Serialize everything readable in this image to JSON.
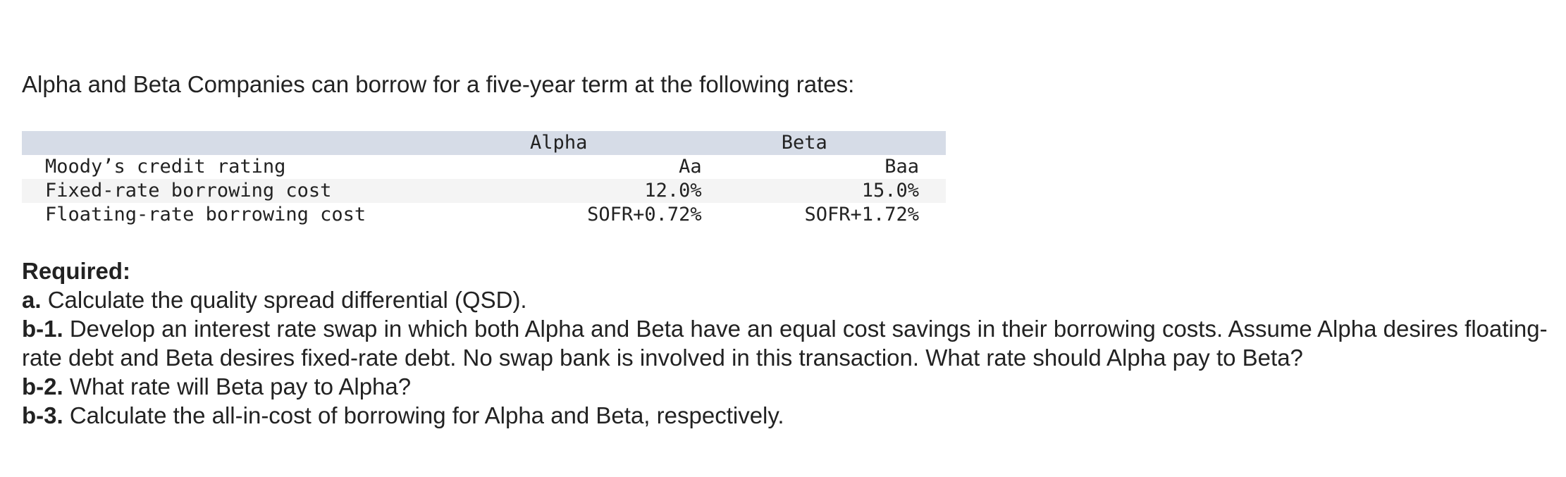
{
  "intro": "Alpha and Beta Companies can borrow for a five-year term at the following rates:",
  "table": {
    "headers": {
      "label": "",
      "alpha": "Alpha",
      "beta": "Beta"
    },
    "rows": [
      {
        "label": "Moody’s credit rating",
        "alpha": "Aa",
        "beta": "Baa"
      },
      {
        "label": "Fixed-rate borrowing cost",
        "alpha": "12.0%",
        "beta": "15.0%"
      },
      {
        "label": "Floating-rate borrowing cost",
        "alpha": "SOFR+0.72%",
        "beta": "SOFR+1.72%"
      }
    ]
  },
  "required": {
    "heading": "Required:",
    "items": [
      {
        "label": "a.",
        "text": " Calculate the quality spread differential (QSD)."
      },
      {
        "label": "b-1.",
        "text": " Develop an interest rate swap in which both Alpha and Beta have an equal cost savings in their borrowing costs. Assume Alpha desires floating-rate debt and Beta desires fixed-rate debt. No swap bank is involved in this transaction. What rate should Alpha pay to Beta?"
      },
      {
        "label": "b-2.",
        "text": " What rate will Beta pay to Alpha?"
      },
      {
        "label": "b-3.",
        "text": " Calculate the all-in-cost of borrowing for Alpha and Beta, respectively."
      }
    ]
  }
}
